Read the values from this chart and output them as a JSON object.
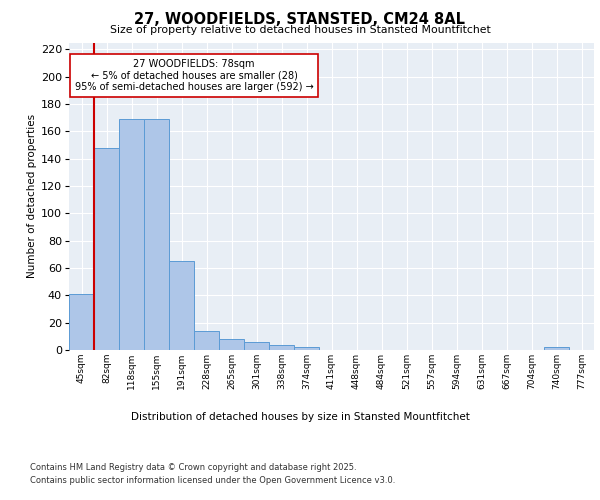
{
  "title": "27, WOODFIELDS, STANSTED, CM24 8AL",
  "subtitle": "Size of property relative to detached houses in Stansted Mountfitchet",
  "xlabel": "Distribution of detached houses by size in Stansted Mountfitchet",
  "ylabel": "Number of detached properties",
  "bins": [
    "45sqm",
    "82sqm",
    "118sqm",
    "155sqm",
    "191sqm",
    "228sqm",
    "265sqm",
    "301sqm",
    "338sqm",
    "374sqm",
    "411sqm",
    "448sqm",
    "484sqm",
    "521sqm",
    "557sqm",
    "594sqm",
    "631sqm",
    "667sqm",
    "704sqm",
    "740sqm",
    "777sqm"
  ],
  "values": [
    41,
    148,
    169,
    169,
    65,
    14,
    8,
    6,
    4,
    2,
    0,
    0,
    0,
    0,
    0,
    0,
    0,
    0,
    0,
    2,
    0
  ],
  "bar_color": "#aec6e8",
  "bar_edge_color": "#5b9bd5",
  "vline_x_idx": 0.5,
  "vline_color": "#cc0000",
  "annotation_text": "27 WOODFIELDS: 78sqm\n← 5% of detached houses are smaller (28)\n95% of semi-detached houses are larger (592) →",
  "annotation_box_color": "white",
  "annotation_box_edge_color": "#cc0000",
  "ylim": [
    0,
    225
  ],
  "yticks": [
    0,
    20,
    40,
    60,
    80,
    100,
    120,
    140,
    160,
    180,
    200,
    220
  ],
  "background_color": "#e8eef5",
  "grid_color": "white",
  "footer_line1": "Contains HM Land Registry data © Crown copyright and database right 2025.",
  "footer_line2": "Contains public sector information licensed under the Open Government Licence v3.0."
}
